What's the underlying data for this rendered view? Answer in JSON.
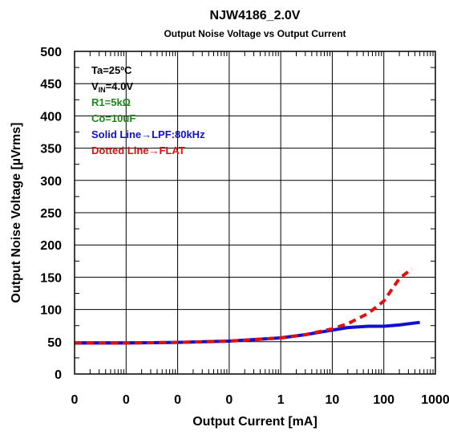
{
  "chart_data": {
    "type": "line",
    "title": "NJW4186_2.0V",
    "subtitle": "Output Noise Voltage vs Output Current",
    "xlabel": "Output Current [mA]",
    "ylabel": "Output Noise Voltage [µVrms]",
    "x_scale": "log",
    "xlim": [
      0.0001,
      1000
    ],
    "ylim": [
      0,
      500
    ],
    "x_tick_values": [
      0.0001,
      0.001,
      0.01,
      0.1,
      1,
      10,
      100,
      1000
    ],
    "x_tick_labels": [
      "0",
      "0",
      "0",
      "0",
      "1",
      "10",
      "100",
      "1000"
    ],
    "y_ticks": [
      0,
      50,
      100,
      150,
      200,
      250,
      300,
      350,
      400,
      450,
      500
    ],
    "y_tick_labels": [
      "0",
      "50",
      "100",
      "150",
      "200",
      "250",
      "300",
      "350",
      "400",
      "450",
      "500"
    ],
    "grid": true,
    "annotations": [
      {
        "text": "Ta=25ºC",
        "color": "#000000"
      },
      {
        "text": "V",
        "sub": "IN",
        "suffix": "=4.0V",
        "color": "#000000"
      },
      {
        "text": "R1=5kΩ",
        "color": "#1a8a1a"
      },
      {
        "text": "Co=10uF",
        "color": "#1a8a1a"
      },
      {
        "text": "Solid Line→LPF:80kHz",
        "color": "#1010d0"
      },
      {
        "text": "Dotted Line→FLAT",
        "color": "#e01010"
      }
    ],
    "series": [
      {
        "style": "solid",
        "color": "#1010d0",
        "x": [
          0.0001,
          0.001,
          0.01,
          0.1,
          1,
          3,
          10,
          20,
          50,
          100,
          200,
          500
        ],
        "y": [
          48,
          48,
          49,
          51,
          56,
          61,
          68,
          72,
          74,
          74,
          76,
          80
        ]
      },
      {
        "style": "dotted",
        "color": "#e01010",
        "x": [
          0.0001,
          0.001,
          0.01,
          0.1,
          1,
          3,
          10,
          20,
          50,
          100,
          200,
          350
        ],
        "y": [
          48,
          48,
          49,
          51,
          56,
          61,
          70,
          78,
          94,
          113,
          148,
          163
        ]
      }
    ]
  }
}
